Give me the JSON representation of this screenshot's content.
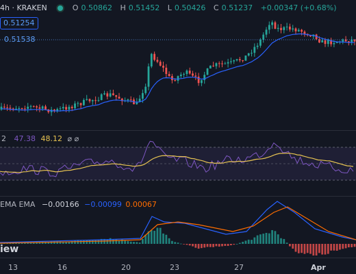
{
  "header": {
    "interval_exchange": "4h · KRAKEN",
    "o_label": "O",
    "o_value": "0.50862",
    "h_label": "H",
    "h_value": "0.51452",
    "l_label": "L",
    "l_value": "0.50426",
    "c_label": "C",
    "c_value": "0.51237",
    "change": "+0.00347 (+0.68%)",
    "dot_color": "#26a69a"
  },
  "price_tags": {
    "current": "0.51254",
    "ma": "0.51538"
  },
  "rsi": {
    "period": "2",
    "value1": "47.38",
    "value2": "48.12",
    "icons": "⌀ ⌀",
    "color1": "#7e57c2",
    "color2": "#e7c352"
  },
  "macd": {
    "label": "EMA EMA",
    "hist": "−0.00166",
    "macd": "−0.00099",
    "signal": "0.00067",
    "macd_color": "#2962ff",
    "signal_color": "#ff6d00"
  },
  "xaxis": {
    "ticks": [
      "13",
      "16",
      "20",
      "23",
      "27",
      "Apr"
    ]
  },
  "watermark": "iew",
  "colors": {
    "up": "#26a69a",
    "down": "#ef5350",
    "ma_line": "#2962ff",
    "background": "#131722"
  }
}
